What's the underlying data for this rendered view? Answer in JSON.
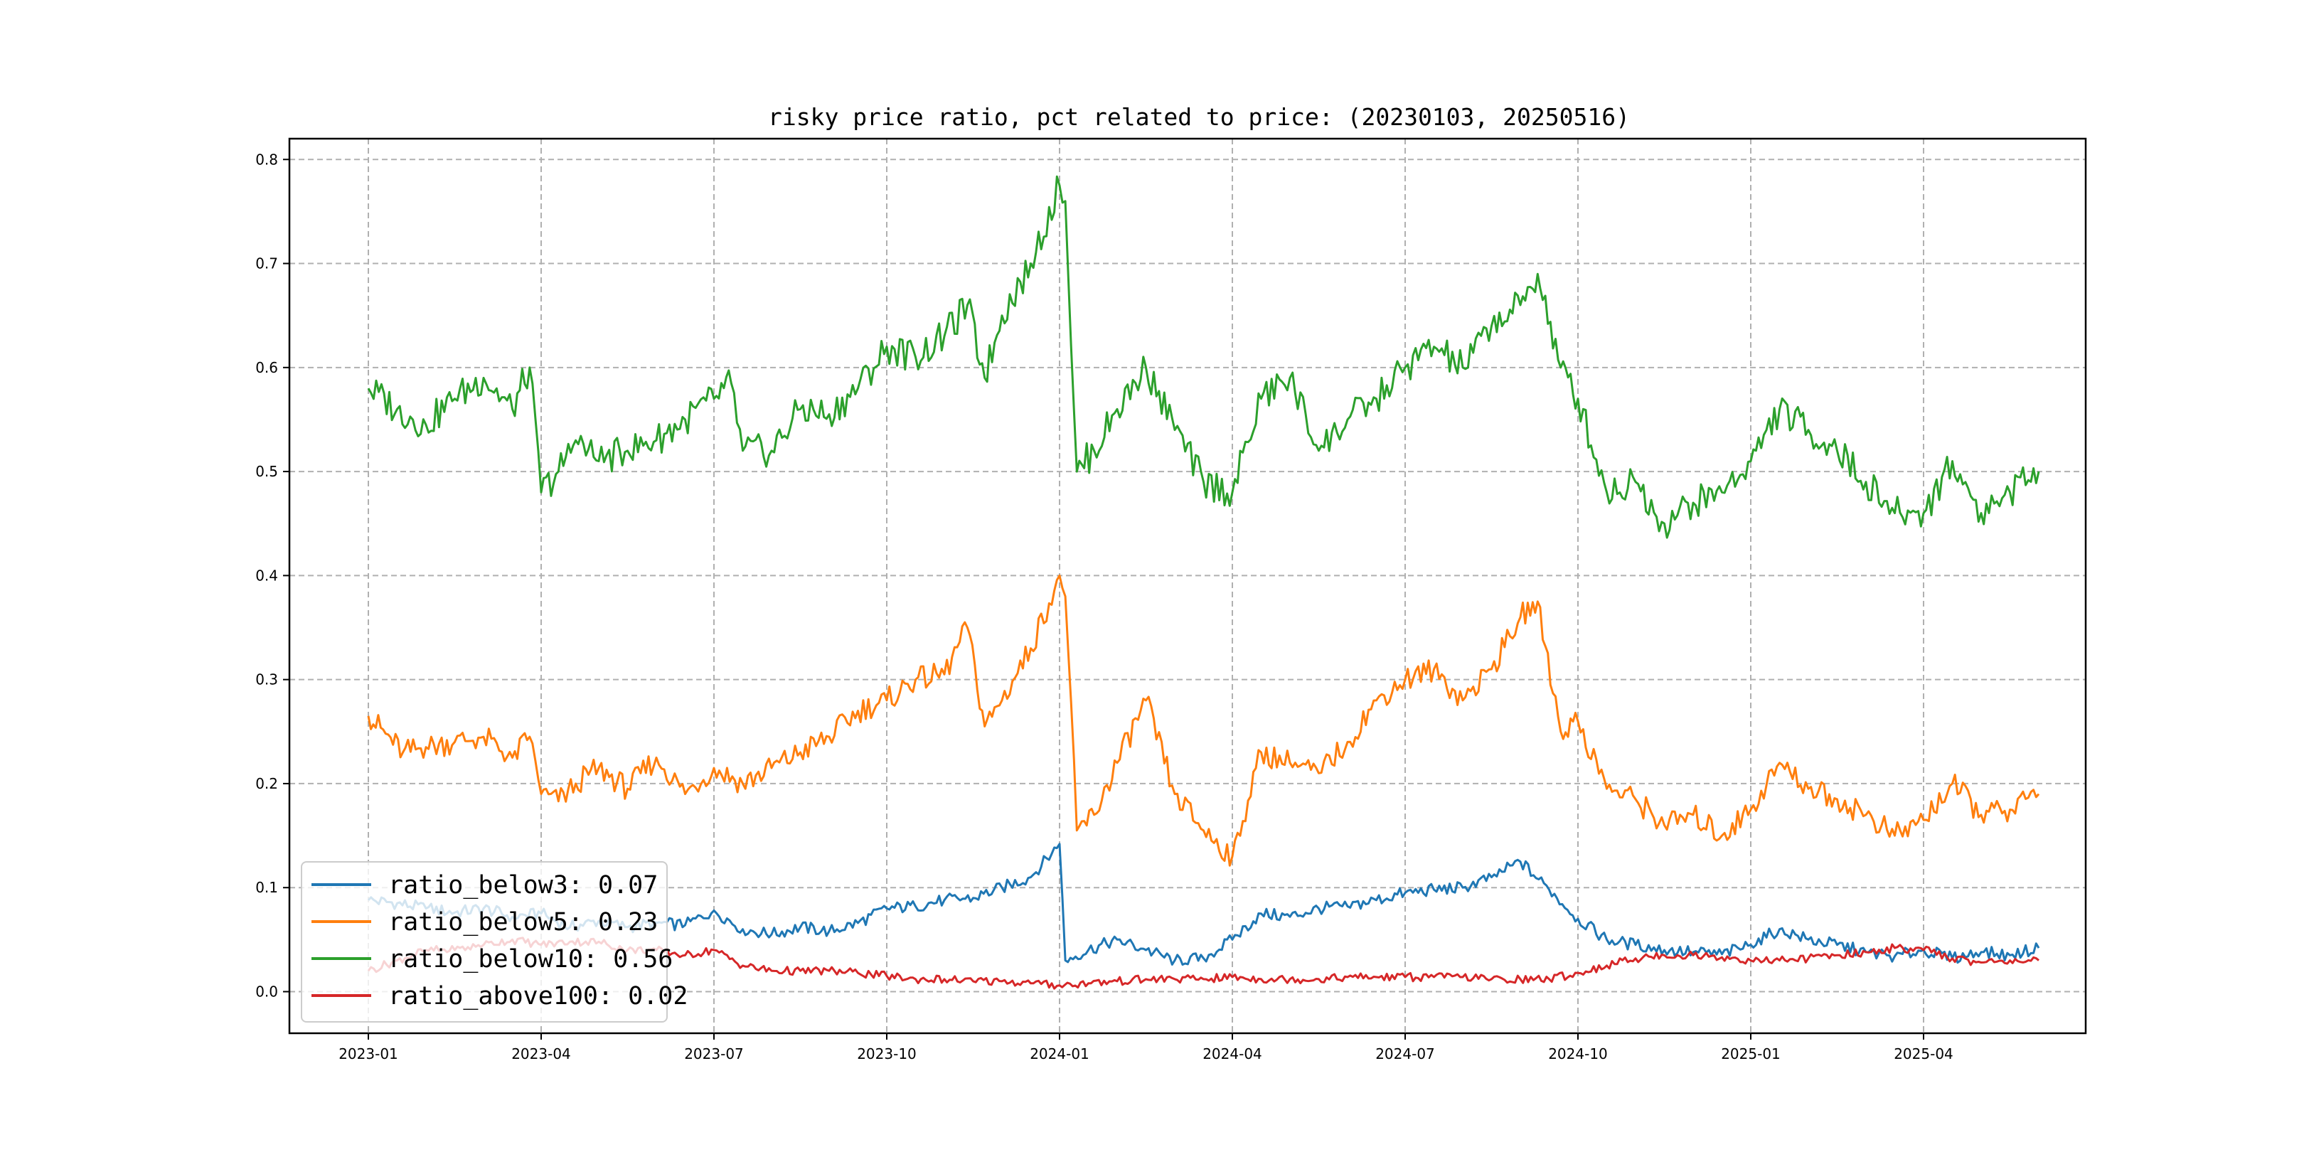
{
  "chart_data": {
    "type": "line",
    "title": "risky price ratio, pct related to price: (20230103, 20250516)",
    "xlabel": "",
    "ylabel": "",
    "x_range": [
      0,
      29.5
    ],
    "x_range_unit": "months since 2023-01",
    "ylim": [
      -0.04,
      0.82
    ],
    "grid": true,
    "legend_position": "lower-left",
    "x_ticks": [
      {
        "label": "2023-01",
        "m": 0
      },
      {
        "label": "2023-04",
        "m": 3
      },
      {
        "label": "2023-07",
        "m": 6
      },
      {
        "label": "2023-10",
        "m": 9
      },
      {
        "label": "2024-01",
        "m": 12
      },
      {
        "label": "2024-04",
        "m": 15
      },
      {
        "label": "2024-07",
        "m": 18
      },
      {
        "label": "2024-10",
        "m": 21
      },
      {
        "label": "2025-01",
        "m": 24
      },
      {
        "label": "2025-04",
        "m": 27
      }
    ],
    "y_ticks": [
      {
        "label": "0.0",
        "v": 0.0
      },
      {
        "label": "0.1",
        "v": 0.1
      },
      {
        "label": "0.2",
        "v": 0.2
      },
      {
        "label": "0.3",
        "v": 0.3
      },
      {
        "label": "0.4",
        "v": 0.4
      },
      {
        "label": "0.5",
        "v": 0.5
      },
      {
        "label": "0.6",
        "v": 0.6
      },
      {
        "label": "0.7",
        "v": 0.7
      },
      {
        "label": "0.8",
        "v": 0.8
      }
    ],
    "series": [
      {
        "name": "ratio_below3",
        "legend": "ratio_below3: 0.07",
        "color": "#1f77b4",
        "points": [
          [
            0,
            0.088
          ],
          [
            0.5,
            0.085
          ],
          [
            1,
            0.08
          ],
          [
            1.5,
            0.076
          ],
          [
            2,
            0.08
          ],
          [
            2.5,
            0.072
          ],
          [
            3,
            0.075
          ],
          [
            3.5,
            0.062
          ],
          [
            4,
            0.068
          ],
          [
            4.5,
            0.062
          ],
          [
            5,
            0.066
          ],
          [
            5.5,
            0.064
          ],
          [
            6,
            0.078
          ],
          [
            6.5,
            0.06
          ],
          [
            7,
            0.055
          ],
          [
            7.5,
            0.062
          ],
          [
            8,
            0.058
          ],
          [
            8.5,
            0.066
          ],
          [
            9,
            0.08
          ],
          [
            9.5,
            0.082
          ],
          [
            10,
            0.088
          ],
          [
            10.5,
            0.09
          ],
          [
            11,
            0.1
          ],
          [
            11.5,
            0.11
          ],
          [
            12,
            0.142
          ],
          [
            12.1,
            0.03
          ],
          [
            12.5,
            0.04
          ],
          [
            13,
            0.05
          ],
          [
            13.5,
            0.04
          ],
          [
            14,
            0.03
          ],
          [
            14.5,
            0.032
          ],
          [
            15,
            0.05
          ],
          [
            15.5,
            0.075
          ],
          [
            16,
            0.072
          ],
          [
            16.5,
            0.08
          ],
          [
            17,
            0.082
          ],
          [
            17.5,
            0.088
          ],
          [
            18,
            0.095
          ],
          [
            18.5,
            0.098
          ],
          [
            19,
            0.1
          ],
          [
            19.5,
            0.11
          ],
          [
            20,
            0.125
          ],
          [
            20.5,
            0.098
          ],
          [
            21,
            0.07
          ],
          [
            21.5,
            0.05
          ],
          [
            22,
            0.045
          ],
          [
            22.5,
            0.04
          ],
          [
            23,
            0.038
          ],
          [
            23.5,
            0.036
          ],
          [
            24,
            0.045
          ],
          [
            24.5,
            0.06
          ],
          [
            25,
            0.05
          ],
          [
            25.5,
            0.045
          ],
          [
            26,
            0.038
          ],
          [
            26.5,
            0.034
          ],
          [
            27,
            0.04
          ],
          [
            27.5,
            0.032
          ],
          [
            28,
            0.038
          ],
          [
            28.5,
            0.035
          ],
          [
            29,
            0.042
          ]
        ]
      },
      {
        "name": "ratio_below5",
        "legend": "ratio_below5: 0.23",
        "color": "#ff7f0e",
        "points": [
          [
            0,
            0.265
          ],
          [
            0.3,
            0.248
          ],
          [
            0.6,
            0.23
          ],
          [
            1,
            0.235
          ],
          [
            1.5,
            0.24
          ],
          [
            2,
            0.245
          ],
          [
            2.5,
            0.225
          ],
          [
            2.8,
            0.245
          ],
          [
            3,
            0.19
          ],
          [
            3.3,
            0.183
          ],
          [
            3.6,
            0.2
          ],
          [
            4,
            0.215
          ],
          [
            4.5,
            0.195
          ],
          [
            5,
            0.225
          ],
          [
            5.5,
            0.19
          ],
          [
            6,
            0.215
          ],
          [
            6.5,
            0.2
          ],
          [
            7,
            0.215
          ],
          [
            7.5,
            0.23
          ],
          [
            8,
            0.245
          ],
          [
            8.5,
            0.27
          ],
          [
            9,
            0.28
          ],
          [
            9.5,
            0.3
          ],
          [
            10,
            0.305
          ],
          [
            10.4,
            0.35
          ],
          [
            10.7,
            0.255
          ],
          [
            11,
            0.28
          ],
          [
            11.5,
            0.33
          ],
          [
            12,
            0.4
          ],
          [
            12.1,
            0.38
          ],
          [
            12.3,
            0.155
          ],
          [
            12.6,
            0.17
          ],
          [
            13,
            0.22
          ],
          [
            13.5,
            0.28
          ],
          [
            14,
            0.19
          ],
          [
            14.5,
            0.155
          ],
          [
            15,
            0.13
          ],
          [
            15.5,
            0.23
          ],
          [
            16,
            0.22
          ],
          [
            16.5,
            0.21
          ],
          [
            17,
            0.24
          ],
          [
            17.5,
            0.28
          ],
          [
            18,
            0.3
          ],
          [
            18.5,
            0.31
          ],
          [
            19,
            0.28
          ],
          [
            19.5,
            0.31
          ],
          [
            20,
            0.36
          ],
          [
            20.3,
            0.375
          ],
          [
            20.7,
            0.25
          ],
          [
            21,
            0.26
          ],
          [
            21.5,
            0.195
          ],
          [
            22,
            0.185
          ],
          [
            22.5,
            0.16
          ],
          [
            23,
            0.17
          ],
          [
            23.5,
            0.15
          ],
          [
            24,
            0.175
          ],
          [
            24.5,
            0.22
          ],
          [
            25,
            0.195
          ],
          [
            25.5,
            0.185
          ],
          [
            26,
            0.17
          ],
          [
            26.5,
            0.15
          ],
          [
            27,
            0.165
          ],
          [
            27.5,
            0.2
          ],
          [
            28,
            0.17
          ],
          [
            28.5,
            0.175
          ],
          [
            29,
            0.19
          ]
        ]
      },
      {
        "name": "ratio_below10",
        "legend": "ratio_below10: 0.56",
        "color": "#2ca02c",
        "points": [
          [
            0,
            0.58
          ],
          [
            0.5,
            0.56
          ],
          [
            1,
            0.545
          ],
          [
            1.5,
            0.57
          ],
          [
            2,
            0.59
          ],
          [
            2.5,
            0.56
          ],
          [
            2.8,
            0.6
          ],
          [
            3,
            0.48
          ],
          [
            3.3,
            0.5
          ],
          [
            3.6,
            0.53
          ],
          [
            4,
            0.51
          ],
          [
            4.5,
            0.52
          ],
          [
            5,
            0.53
          ],
          [
            5.5,
            0.55
          ],
          [
            6,
            0.57
          ],
          [
            6.3,
            0.585
          ],
          [
            6.5,
            0.52
          ],
          [
            7,
            0.52
          ],
          [
            7.5,
            0.56
          ],
          [
            8,
            0.555
          ],
          [
            8.5,
            0.58
          ],
          [
            9,
            0.62
          ],
          [
            9.5,
            0.61
          ],
          [
            10,
            0.63
          ],
          [
            10.4,
            0.66
          ],
          [
            10.7,
            0.59
          ],
          [
            11,
            0.65
          ],
          [
            11.5,
            0.7
          ],
          [
            12,
            0.775
          ],
          [
            12.1,
            0.76
          ],
          [
            12.3,
            0.5
          ],
          [
            12.6,
            0.52
          ],
          [
            13,
            0.56
          ],
          [
            13.5,
            0.6
          ],
          [
            14,
            0.54
          ],
          [
            14.5,
            0.49
          ],
          [
            15,
            0.48
          ],
          [
            15.5,
            0.57
          ],
          [
            16,
            0.59
          ],
          [
            16.5,
            0.52
          ],
          [
            17,
            0.55
          ],
          [
            17.5,
            0.57
          ],
          [
            18,
            0.6
          ],
          [
            18.5,
            0.62
          ],
          [
            19,
            0.6
          ],
          [
            19.5,
            0.64
          ],
          [
            20,
            0.66
          ],
          [
            20.3,
            0.69
          ],
          [
            20.7,
            0.6
          ],
          [
            21,
            0.57
          ],
          [
            21.5,
            0.48
          ],
          [
            22,
            0.49
          ],
          [
            22.5,
            0.45
          ],
          [
            23,
            0.47
          ],
          [
            23.5,
            0.48
          ],
          [
            24,
            0.51
          ],
          [
            24.5,
            0.56
          ],
          [
            25,
            0.54
          ],
          [
            25.5,
            0.52
          ],
          [
            26,
            0.49
          ],
          [
            26.5,
            0.46
          ],
          [
            27,
            0.46
          ],
          [
            27.5,
            0.51
          ],
          [
            28,
            0.46
          ],
          [
            28.5,
            0.48
          ],
          [
            29,
            0.5
          ]
        ]
      },
      {
        "name": "ratio_above100",
        "legend": "ratio_above100: 0.02",
        "color": "#d62728",
        "points": [
          [
            0,
            0.02
          ],
          [
            0.5,
            0.03
          ],
          [
            1,
            0.04
          ],
          [
            1.5,
            0.04
          ],
          [
            2,
            0.045
          ],
          [
            2.5,
            0.05
          ],
          [
            3,
            0.045
          ],
          [
            3.5,
            0.048
          ],
          [
            4,
            0.048
          ],
          [
            4.5,
            0.04
          ],
          [
            5,
            0.04
          ],
          [
            5.5,
            0.035
          ],
          [
            6,
            0.04
          ],
          [
            6.5,
            0.025
          ],
          [
            7,
            0.02
          ],
          [
            7.5,
            0.02
          ],
          [
            8,
            0.02
          ],
          [
            8.5,
            0.018
          ],
          [
            9,
            0.015
          ],
          [
            9.5,
            0.012
          ],
          [
            10,
            0.012
          ],
          [
            10.5,
            0.01
          ],
          [
            11,
            0.01
          ],
          [
            11.5,
            0.008
          ],
          [
            12,
            0.006
          ],
          [
            12.5,
            0.008
          ],
          [
            13,
            0.01
          ],
          [
            13.5,
            0.012
          ],
          [
            14,
            0.012
          ],
          [
            14.5,
            0.012
          ],
          [
            15,
            0.014
          ],
          [
            15.5,
            0.012
          ],
          [
            16,
            0.012
          ],
          [
            16.5,
            0.012
          ],
          [
            17,
            0.014
          ],
          [
            17.5,
            0.014
          ],
          [
            18,
            0.014
          ],
          [
            18.5,
            0.014
          ],
          [
            19,
            0.014
          ],
          [
            19.5,
            0.012
          ],
          [
            20,
            0.012
          ],
          [
            20.5,
            0.012
          ],
          [
            21,
            0.018
          ],
          [
            21.5,
            0.025
          ],
          [
            22,
            0.032
          ],
          [
            22.5,
            0.035
          ],
          [
            23,
            0.035
          ],
          [
            23.5,
            0.033
          ],
          [
            24,
            0.03
          ],
          [
            24.5,
            0.03
          ],
          [
            25,
            0.032
          ],
          [
            25.5,
            0.035
          ],
          [
            26,
            0.038
          ],
          [
            26.5,
            0.042
          ],
          [
            27,
            0.04
          ],
          [
            27.5,
            0.032
          ],
          [
            28,
            0.028
          ],
          [
            28.5,
            0.03
          ],
          [
            29,
            0.03
          ]
        ]
      }
    ]
  }
}
